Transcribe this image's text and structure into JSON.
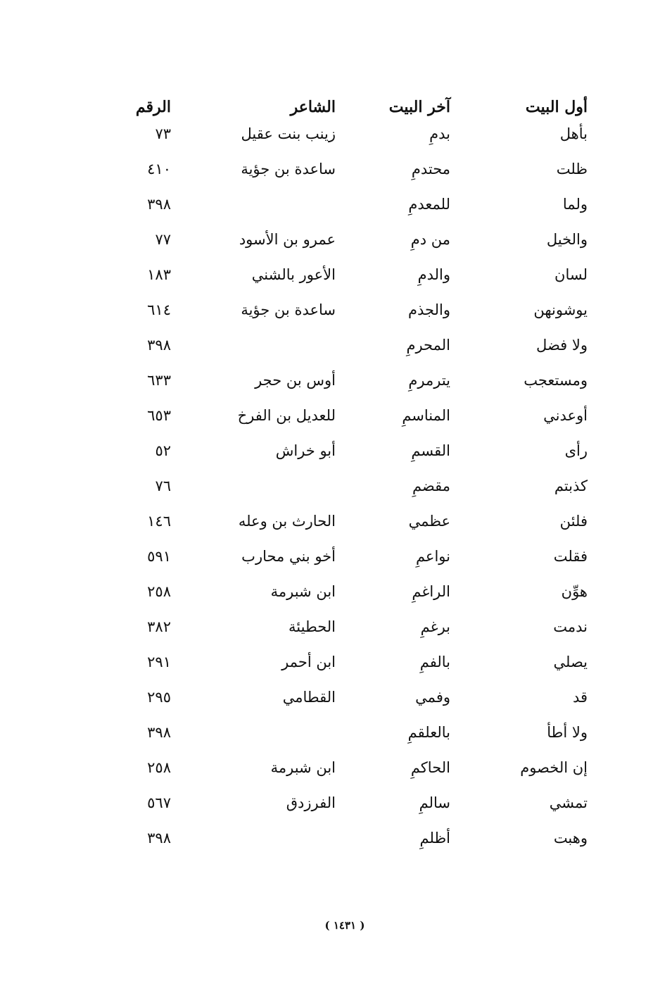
{
  "headers": {
    "first": "أول البيت",
    "last": "آخر البيت",
    "poet": "الشاعر",
    "number": "الرقم"
  },
  "rows": [
    {
      "first": "بأهل",
      "last": "بدمِ",
      "poet": "زينب بنت عقيل",
      "number": "٧٣"
    },
    {
      "first": "ظلت",
      "last": "محتدمِ",
      "poet": "ساعدة بن جؤية",
      "number": "٤١٠"
    },
    {
      "first": "ولما",
      "last": "للمعدمِ",
      "poet": "",
      "number": "٣٩٨"
    },
    {
      "first": "والخيل",
      "last": "من دمِ",
      "poet": "عمرو بن الأسود",
      "number": "٧٧"
    },
    {
      "first": "لسان",
      "last": "والدمِ",
      "poet": "الأعور بالشني",
      "number": "١٨٣"
    },
    {
      "first": "يوشونهن",
      "last": "والجذم",
      "poet": "ساعدة بن جؤية",
      "number": "٦١٤"
    },
    {
      "first": "ولا فضل",
      "last": "المحرمِ",
      "poet": "",
      "number": "٣٩٨"
    },
    {
      "first": "ومستعجب",
      "last": "يترمرمِ",
      "poet": "أوس بن حجر",
      "number": "٦٣٣"
    },
    {
      "first": "أوعدني",
      "last": "المناسمِ",
      "poet": "للعديل بن الفرخ",
      "number": "٦٥٣"
    },
    {
      "first": "رأى",
      "last": "القسمِ",
      "poet": "أبو خراش",
      "number": "٥٢"
    },
    {
      "first": "كذبتم",
      "last": "مقضمِ",
      "poet": "",
      "number": "٧٦"
    },
    {
      "first": "فلئن",
      "last": "عظمي",
      "poet": "الحارث بن وعله",
      "number": "١٤٦"
    },
    {
      "first": "فقلت",
      "last": "نواعمِ",
      "poet": "أخو بني محارب",
      "number": "٥٩١"
    },
    {
      "first": "هوِّن",
      "last": "الراغمِ",
      "poet": "ابن شبرمة",
      "number": "٢٥٨"
    },
    {
      "first": "ندمت",
      "last": "برغمِ",
      "poet": "الحطيئة",
      "number": "٣٨٢"
    },
    {
      "first": "يصلي",
      "last": "بالفمِ",
      "poet": "ابن أحمر",
      "number": "٢٩١"
    },
    {
      "first": "قد",
      "last": "وفمي",
      "poet": "القطامي",
      "number": "٢٩٥"
    },
    {
      "first": "ولا أطأ",
      "last": "بالعلقمِ",
      "poet": "",
      "number": "٣٩٨"
    },
    {
      "first": "إن الخصوم",
      "last": "الحاكمِ",
      "poet": "ابن شبرمة",
      "number": "٢٥٨"
    },
    {
      "first": "تمشي",
      "last": "سالمِ",
      "poet": "الفرزدق",
      "number": "٥٦٧"
    },
    {
      "first": "وهبت",
      "last": "أظلمِ",
      "poet": "",
      "number": "٣٩٨"
    }
  ],
  "page_number": "( ١٤٣١ )"
}
